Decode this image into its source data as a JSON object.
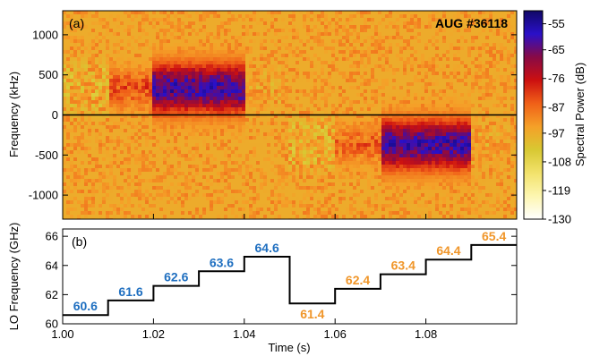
{
  "chart_data": [
    {
      "type": "heatmap",
      "panel_label": "(a)",
      "annotation": "AUG #36118",
      "ylabel": "Frequency (kHz)",
      "xlim": [
        1.0,
        1.1
      ],
      "ylim": [
        -1300,
        1300
      ],
      "yticks": [
        -1000,
        -500,
        0,
        500,
        1000
      ],
      "zero_line_y": 0,
      "colorbar": {
        "label": "Spectral Power (dB)",
        "range": [
          -130,
          -50
        ],
        "ticks": [
          -55,
          -65,
          -76,
          -87,
          -97,
          -108,
          -119,
          -130
        ],
        "colors": [
          "#ffffff",
          "#fdf6b0",
          "#f2e26b",
          "#d8c832",
          "#f5a028",
          "#f06018",
          "#cc1010",
          "#880a46",
          "#2a10c8",
          "#100866"
        ]
      },
      "segments": [
        {
          "t0": 1.0,
          "t1": 1.01,
          "f_center": 330,
          "width": 270,
          "peak_db": -118
        },
        {
          "t0": 1.01,
          "t1": 1.02,
          "f_center": 330,
          "width": 290,
          "peak_db": -84
        },
        {
          "t0": 1.02,
          "t1": 1.04,
          "f_center": 330,
          "width": 380,
          "peak_db": -60
        },
        {
          "t0": 1.04,
          "t1": 1.05,
          "f_center": 330,
          "width": 280,
          "peak_db": -96
        },
        {
          "t0": 1.05,
          "t1": 1.06,
          "f_center": -370,
          "width": 270,
          "peak_db": -118
        },
        {
          "t0": 1.06,
          "t1": 1.07,
          "f_center": -370,
          "width": 290,
          "peak_db": -86
        },
        {
          "t0": 1.07,
          "t1": 1.09,
          "f_center": -370,
          "width": 380,
          "peak_db": -60
        },
        {
          "t0": 1.09,
          "t1": 1.1,
          "f_center": -370,
          "width": 280,
          "peak_db": -96
        }
      ]
    },
    {
      "type": "line",
      "panel_label": "(b)",
      "xlabel": "Time (s)",
      "ylabel": "LO Frequency (GHz)",
      "xlim": [
        1.0,
        1.1
      ],
      "ylim": [
        60,
        66.5
      ],
      "xticks": [
        1.0,
        1.02,
        1.04,
        1.06,
        1.08
      ],
      "xtick_labels": [
        "1.00",
        "1.02",
        "1.04",
        "1.06",
        "1.08"
      ],
      "yticks": [
        60,
        62,
        64,
        66
      ],
      "steps": [
        {
          "t0": 1.0,
          "t1": 1.01,
          "value": 60.6,
          "label": "60.6",
          "color": "#1f6fc0"
        },
        {
          "t0": 1.01,
          "t1": 1.02,
          "value": 61.6,
          "label": "61.6",
          "color": "#1f6fc0"
        },
        {
          "t0": 1.02,
          "t1": 1.03,
          "value": 62.6,
          "label": "62.6",
          "color": "#1f6fc0"
        },
        {
          "t0": 1.03,
          "t1": 1.04,
          "value": 63.6,
          "label": "63.6",
          "color": "#1f6fc0"
        },
        {
          "t0": 1.04,
          "t1": 1.05,
          "value": 64.6,
          "label": "64.6",
          "color": "#1f6fc0"
        },
        {
          "t0": 1.05,
          "t1": 1.06,
          "value": 61.4,
          "label": "61.4",
          "color": "#f0962a"
        },
        {
          "t0": 1.06,
          "t1": 1.07,
          "value": 62.4,
          "label": "62.4",
          "color": "#f0962a"
        },
        {
          "t0": 1.07,
          "t1": 1.08,
          "value": 63.4,
          "label": "63.4",
          "color": "#f0962a"
        },
        {
          "t0": 1.08,
          "t1": 1.09,
          "value": 64.4,
          "label": "64.4",
          "color": "#f0962a"
        },
        {
          "t0": 1.09,
          "t1": 1.1,
          "value": 65.4,
          "label": "65.4",
          "color": "#f0962a"
        }
      ]
    }
  ]
}
